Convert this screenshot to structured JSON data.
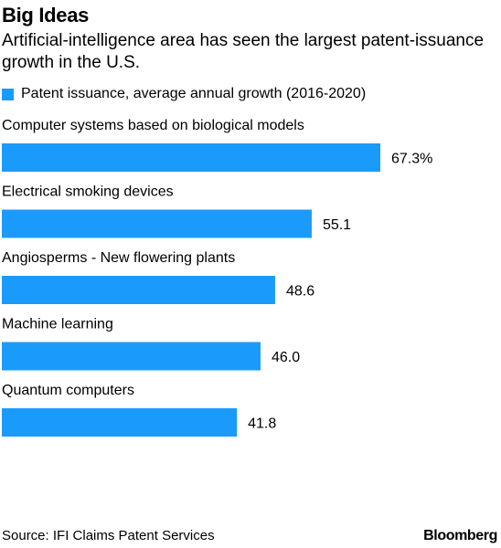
{
  "title": "Big Ideas",
  "subtitle": "Artificial-intelligence area has seen the largest patent-issuance growth in the U.S.",
  "legend": {
    "label": "Patent issuance, average annual growth (2016-2020)",
    "color": "#1a9bfc"
  },
  "source": "Source: IFI Claims Patent Services",
  "brand": "Bloomberg",
  "chart_data": {
    "type": "bar",
    "orientation": "horizontal",
    "categories": [
      "Computer systems based on biological models",
      "Electrical smoking devices",
      "Angiosperms - New flowering plants",
      "Machine learning",
      "Quantum computers"
    ],
    "series": [
      {
        "name": "Patent issuance, average annual growth (2016-2020)",
        "values": [
          67.3,
          55.1,
          48.6,
          46.0,
          41.8
        ]
      }
    ],
    "value_labels": [
      "67.3%",
      "55.1",
      "48.6",
      "46.0",
      "41.8"
    ],
    "xlim": [
      0,
      67.3
    ],
    "grid": false,
    "legend_position": "top-left",
    "bar_color": "#1a9bfc"
  }
}
